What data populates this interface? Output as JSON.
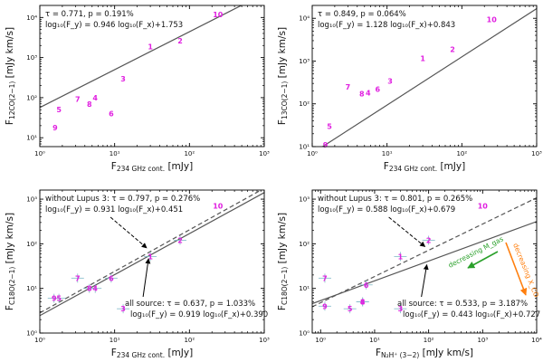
{
  "figure": {
    "arrow_color": "#000000",
    "fit_color": "#555555",
    "point_color": "#e020e0",
    "errorbar_color": "#7fb8c8"
  },
  "chart_data": [
    {
      "id": "p1",
      "type": "scatter",
      "xlabel": "F_234 GHz cont. [mJy]",
      "xlabel_parts": {
        "base": "F",
        "sub": "234 GHz cont.",
        "unit": " [mJy]"
      },
      "ylabel": "F_12CO(2−1) [mJy km/s]",
      "ylabel_parts": {
        "base": "F",
        "sub": "12CO(2−1)",
        "unit": " [mJy km/s]"
      },
      "xscale": "log",
      "yscale": "log",
      "xlim": [
        1,
        1000
      ],
      "ylim": [
        6,
        20000
      ],
      "xticks": [
        1,
        10,
        100,
        1000
      ],
      "xtick_labels": [
        "10⁰",
        "10¹",
        "10²",
        "10³"
      ],
      "yticks": [
        10,
        100,
        1000,
        10000
      ],
      "ytick_labels": [
        "10¹",
        "10²",
        "10³",
        "10⁴"
      ],
      "annotation": [
        "τ = 0.771, p = 0.191%",
        "log₁₀(F_y) = 0.946 log₁₀(F_x)+1.753"
      ],
      "annotation_pos": "top-left",
      "fits": [
        {
          "slope": 0.946,
          "intercept": 1.753,
          "style": "solid"
        }
      ],
      "points": [
        {
          "label": "1",
          "x": 30,
          "y": 1900
        },
        {
          "label": "2",
          "x": 75,
          "y": 2600
        },
        {
          "label": "3",
          "x": 13,
          "y": 300
        },
        {
          "label": "4",
          "x": 5.5,
          "y": 100
        },
        {
          "label": "5",
          "x": 1.8,
          "y": 50
        },
        {
          "label": "6",
          "x": 9,
          "y": 40
        },
        {
          "label": "7",
          "x": 3.2,
          "y": 92
        },
        {
          "label": "8",
          "x": 4.6,
          "y": 70
        },
        {
          "label": "9",
          "x": 1.6,
          "y": 18
        },
        {
          "label": "10",
          "x": 240,
          "y": 12000
        }
      ]
    },
    {
      "id": "p2",
      "type": "scatter",
      "xlabel": "F_234 GHz cont. [mJy]",
      "xlabel_parts": {
        "base": "F",
        "sub": "234 GHz cont.",
        "unit": " [mJy]"
      },
      "ylabel": "F_13CO(2−1) [mJy km/s]",
      "ylabel_parts": {
        "base": "F",
        "sub": "13CO(2−1)",
        "unit": " [mJy km/s]"
      },
      "xscale": "log",
      "yscale": "log",
      "xlim": [
        1,
        1000
      ],
      "ylim": [
        10,
        20000
      ],
      "xticks": [
        1,
        10,
        100,
        1000
      ],
      "xtick_labels": [
        "10⁰",
        "10¹",
        "10²",
        "10³"
      ],
      "yticks": [
        10,
        100,
        1000,
        10000
      ],
      "ytick_labels": [
        "10¹",
        "10²",
        "10³",
        "10⁴"
      ],
      "annotation": [
        "τ = 0.849, p = 0.064%",
        "log₁₀(F_y) = 1.128 log₁₀(F_x)+0.843"
      ],
      "annotation_pos": "top-left",
      "fits": [
        {
          "slope": 1.128,
          "intercept": 0.843,
          "style": "solid"
        }
      ],
      "points": [
        {
          "label": "1",
          "x": 30,
          "y": 1150
        },
        {
          "label": "2",
          "x": 75,
          "y": 1900
        },
        {
          "label": "3",
          "x": 11,
          "y": 340
        },
        {
          "label": "4",
          "x": 5.6,
          "y": 180
        },
        {
          "label": "5",
          "x": 1.7,
          "y": 30
        },
        {
          "label": "6",
          "x": 7.5,
          "y": 220
        },
        {
          "label": "7",
          "x": 3,
          "y": 250
        },
        {
          "label": "8",
          "x": 4.6,
          "y": 175
        },
        {
          "label": "9",
          "x": 1.5,
          "y": 11
        },
        {
          "label": "10",
          "x": 250,
          "y": 9500
        }
      ]
    },
    {
      "id": "p3",
      "type": "scatter",
      "xlabel": "F_234 GHz cont. [mJy]",
      "xlabel_parts": {
        "base": "F",
        "sub": "234 GHz cont.",
        "unit": " [mJy]"
      },
      "ylabel": "F_C18O(2−1) [mJy km/s]",
      "ylabel_parts": {
        "base": "F",
        "sub": "C18O(2−1)",
        "unit": " [mJy km/s]"
      },
      "xscale": "log",
      "yscale": "log",
      "xlim": [
        1,
        1000
      ],
      "ylim": [
        1,
        1600
      ],
      "xticks": [
        1,
        10,
        100,
        1000
      ],
      "xtick_labels": [
        "10⁰",
        "10¹",
        "10²",
        "10³"
      ],
      "yticks": [
        1,
        10,
        100,
        1000
      ],
      "ytick_labels": [
        "10⁰",
        "10¹",
        "10²",
        "10³"
      ],
      "annotation": [
        "without Lupus 3: τ = 0.797, p = 0.276%",
        "log₁₀(F_y) = 0.931 log₁₀(F_x)+0.451"
      ],
      "annotation_pos": "top-left",
      "annotation2": [
        "all source: τ = 0.637, p = 1.033%",
        "log₁₀(F_y) = 0.919 log₁₀(F_x)+0.390"
      ],
      "annotation2_pos": "bottom-right",
      "fits": [
        {
          "slope": 0.931,
          "intercept": 0.451,
          "style": "dashed"
        },
        {
          "slope": 0.919,
          "intercept": 0.39,
          "style": "solid"
        }
      ],
      "points": [
        {
          "label": "1",
          "x": 30,
          "y": 52
        },
        {
          "label": "2",
          "x": 75,
          "y": 120
        },
        {
          "label": "3",
          "x": 13,
          "y": 3.5
        },
        {
          "label": "4",
          "x": 5.5,
          "y": 10
        },
        {
          "label": "5",
          "x": 1.8,
          "y": 6
        },
        {
          "label": "6",
          "x": 9,
          "y": 17
        },
        {
          "label": "7",
          "x": 3.2,
          "y": 17
        },
        {
          "label": "8",
          "x": 4.6,
          "y": 10
        },
        {
          "label": "9",
          "x": 1.55,
          "y": 6
        },
        {
          "label": "10",
          "x": 240,
          "y": 700
        }
      ]
    },
    {
      "id": "p4",
      "type": "scatter",
      "xlabel": "F_N2H+(3−2) [mJy km/s]",
      "xlabel_parts": {
        "base": "F",
        "sub": "N₂H⁺ (3−2)",
        "unit": " [mJy km/s]"
      },
      "ylabel": "F_C18O(2−1) [mJy km/s]",
      "ylabel_parts": {
        "base": "F",
        "sub": "C18O(2−1)",
        "unit": " [mJy km/s]"
      },
      "xscale": "log",
      "yscale": "log",
      "xlim": [
        0.7,
        10000
      ],
      "ylim": [
        1,
        1600
      ],
      "xticks": [
        1,
        10,
        100,
        1000,
        10000
      ],
      "xtick_labels": [
        "10⁰",
        "10¹",
        "10²",
        "10³",
        "10⁴"
      ],
      "yticks": [
        1,
        10,
        100,
        1000
      ],
      "ytick_labels": [
        "10⁰",
        "10¹",
        "10²",
        "10³"
      ],
      "annotation": [
        "without Lupus 3: τ = 0.801, p = 0.265%",
        "log₁₀(F_y) = 0.588 log₁₀(F_x)+0.679"
      ],
      "annotation_pos": "top-left",
      "annotation2": [
        "all source: τ = 0.533, p = 3.187%",
        "log₁₀(F_y) = 0.443 log₁₀(F_x)+0.727"
      ],
      "annotation2_pos": "bottom-right",
      "extra_annotations": [
        {
          "text": "decreasing M_gas",
          "color": "#2aa02a"
        },
        {
          "text": "decreasing X_CO",
          "color": "#ff7f0e"
        }
      ],
      "fits": [
        {
          "slope": 0.588,
          "intercept": 0.679,
          "style": "dashed"
        },
        {
          "slope": 0.443,
          "intercept": 0.727,
          "style": "solid"
        }
      ],
      "points": [
        {
          "label": "1",
          "x": 30,
          "y": 52
        },
        {
          "label": "2",
          "x": 100,
          "y": 120
        },
        {
          "label": "3",
          "x": 30,
          "y": 3.5
        },
        {
          "label": "4",
          "x": 6,
          "y": 5
        },
        {
          "label": "5",
          "x": 3.5,
          "y": 3.5
        },
        {
          "label": "6",
          "x": 7,
          "y": 12
        },
        {
          "label": "7",
          "x": 1.2,
          "y": 17
        },
        {
          "label": "8",
          "x": 6,
          "y": 5
        },
        {
          "label": "9",
          "x": 1.2,
          "y": 4
        },
        {
          "label": "10",
          "x": 1000,
          "y": 700
        }
      ]
    }
  ]
}
